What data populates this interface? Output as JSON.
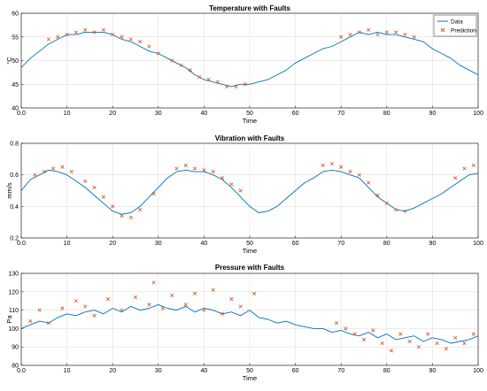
{
  "colors": {
    "data": "#0072BD",
    "prediction": "#D95319"
  },
  "legend": {
    "data_label": "Data",
    "prediction_label": "Prediction",
    "placement": "top-right"
  },
  "chart_data": [
    {
      "type": "line",
      "title": "Temperature with Faults",
      "xlabel": "Time",
      "ylabel": "°C",
      "xlim": [
        0,
        100
      ],
      "ylim": [
        40,
        60
      ],
      "xticks": [
        0,
        10,
        20,
        30,
        40,
        50,
        60,
        70,
        80,
        90,
        100
      ],
      "yticks": [
        40,
        45,
        50,
        55,
        60
      ],
      "grid": true,
      "legend": true,
      "series": [
        {
          "name": "Data",
          "x": [
            0,
            2,
            4,
            6,
            8,
            10,
            12,
            14,
            16,
            18,
            20,
            22,
            24,
            26,
            28,
            30,
            32,
            34,
            36,
            38,
            40,
            42,
            44,
            46,
            48,
            50,
            52,
            54,
            56,
            58,
            60,
            62,
            64,
            66,
            68,
            70,
            72,
            74,
            76,
            78,
            80,
            82,
            84,
            86,
            88,
            90,
            92,
            94,
            96,
            98,
            100
          ],
          "values": [
            48.5,
            50.5,
            52,
            53.5,
            54.5,
            55.5,
            55.5,
            56,
            56,
            56,
            55.5,
            54.5,
            54,
            53,
            52,
            51.5,
            50.5,
            49.5,
            48.5,
            47,
            46,
            45.5,
            45,
            44.5,
            45,
            45,
            45.5,
            46,
            47,
            48,
            49.5,
            50.5,
            51.5,
            52.5,
            53,
            54,
            55,
            56,
            55.5,
            56,
            55.5,
            55.5,
            55,
            54.5,
            54,
            52.5,
            51.5,
            50.5,
            49,
            48,
            47
          ]
        },
        {
          "name": "Prediction",
          "x": [
            6,
            8,
            10,
            12,
            14,
            16,
            18,
            20,
            22,
            24,
            26,
            28,
            30,
            33,
            35,
            37,
            39,
            41,
            43,
            45,
            47,
            49,
            70,
            72,
            74,
            76,
            78,
            80,
            82,
            84,
            86
          ],
          "values": [
            54.5,
            55,
            55.5,
            56,
            56.5,
            56,
            56.5,
            55.5,
            55,
            54.5,
            54,
            53,
            51.5,
            50,
            49,
            48,
            46.5,
            46,
            45.5,
            44.5,
            44.5,
            45,
            55,
            55.5,
            56,
            56.5,
            55.5,
            56,
            56,
            55.5,
            55
          ]
        }
      ]
    },
    {
      "type": "line",
      "title": "Vibration with Faults",
      "xlabel": "Time",
      "ylabel": "mm/s",
      "xlim": [
        0,
        100
      ],
      "ylim": [
        0.2,
        0.8
      ],
      "xticks": [
        0,
        10,
        20,
        30,
        40,
        50,
        60,
        70,
        80,
        90,
        100
      ],
      "yticks": [
        0.2,
        0.4,
        0.6,
        0.8
      ],
      "grid": true,
      "legend": false,
      "series": [
        {
          "name": "Data",
          "x": [
            0,
            2,
            4,
            6,
            8,
            10,
            12,
            14,
            16,
            18,
            20,
            22,
            24,
            26,
            28,
            30,
            32,
            34,
            36,
            38,
            40,
            42,
            44,
            46,
            48,
            50,
            52,
            54,
            56,
            58,
            60,
            62,
            64,
            66,
            68,
            70,
            72,
            74,
            76,
            78,
            80,
            82,
            84,
            86,
            88,
            90,
            92,
            94,
            96,
            98,
            100
          ],
          "values": [
            0.5,
            0.57,
            0.6,
            0.63,
            0.62,
            0.6,
            0.56,
            0.52,
            0.47,
            0.42,
            0.37,
            0.35,
            0.36,
            0.4,
            0.46,
            0.52,
            0.58,
            0.62,
            0.63,
            0.62,
            0.62,
            0.6,
            0.57,
            0.52,
            0.46,
            0.4,
            0.36,
            0.37,
            0.4,
            0.45,
            0.5,
            0.55,
            0.58,
            0.62,
            0.63,
            0.62,
            0.6,
            0.58,
            0.52,
            0.46,
            0.42,
            0.38,
            0.37,
            0.39,
            0.42,
            0.45,
            0.48,
            0.52,
            0.56,
            0.6,
            0.61
          ]
        },
        {
          "name": "Prediction",
          "x": [
            3,
            5,
            7,
            9,
            11,
            14,
            16,
            18,
            20,
            22,
            24,
            26,
            29,
            34,
            36,
            38,
            40,
            42,
            44,
            46,
            48,
            66,
            68,
            70,
            72,
            74,
            76,
            78,
            80,
            82,
            84,
            95,
            97,
            99
          ],
          "values": [
            0.6,
            0.62,
            0.64,
            0.65,
            0.62,
            0.56,
            0.52,
            0.46,
            0.4,
            0.34,
            0.33,
            0.38,
            0.48,
            0.64,
            0.66,
            0.64,
            0.63,
            0.62,
            0.58,
            0.54,
            0.5,
            0.66,
            0.67,
            0.65,
            0.62,
            0.6,
            0.55,
            0.47,
            0.42,
            0.38,
            0.37,
            0.58,
            0.64,
            0.66
          ]
        }
      ]
    },
    {
      "type": "line",
      "title": "Pressure with Faults",
      "xlabel": "Time",
      "ylabel": "Pa",
      "xlim": [
        0,
        100
      ],
      "ylim": [
        80,
        130
      ],
      "xticks": [
        0,
        10,
        20,
        30,
        40,
        50,
        60,
        70,
        80,
        90,
        100
      ],
      "yticks": [
        80,
        90,
        100,
        110,
        120,
        130
      ],
      "grid": true,
      "legend": false,
      "series": [
        {
          "name": "Data",
          "x": [
            0,
            2,
            4,
            6,
            8,
            10,
            12,
            14,
            16,
            18,
            20,
            22,
            24,
            26,
            28,
            30,
            32,
            34,
            36,
            38,
            40,
            42,
            44,
            46,
            48,
            50,
            52,
            54,
            56,
            58,
            60,
            62,
            64,
            66,
            68,
            70,
            72,
            74,
            76,
            78,
            80,
            82,
            84,
            86,
            88,
            90,
            92,
            94,
            96,
            98,
            100
          ],
          "values": [
            100,
            102,
            104,
            103,
            106,
            108,
            107,
            109,
            110,
            108,
            111,
            109,
            112,
            110,
            111,
            113,
            111,
            110,
            112,
            109,
            111,
            110,
            108,
            109,
            107,
            110,
            106,
            105,
            103,
            104,
            102,
            101,
            100,
            100,
            98,
            99,
            97,
            96,
            98,
            95,
            97,
            94,
            95,
            96,
            93,
            95,
            94,
            92,
            93,
            94,
            96
          ]
        },
        {
          "name": "Prediction",
          "x": [
            2,
            4,
            6,
            9,
            12,
            14,
            16,
            19,
            22,
            25,
            28,
            29,
            31,
            33,
            36,
            38,
            40,
            42,
            44,
            46,
            48,
            51,
            69,
            71,
            73,
            75,
            77,
            79,
            81,
            83,
            85,
            87,
            89,
            91,
            93,
            95,
            97,
            99
          ],
          "values": [
            104,
            110,
            103,
            111,
            115,
            112,
            107,
            116,
            110,
            117,
            113,
            125,
            111,
            118,
            113,
            119,
            110,
            121,
            108,
            116,
            112,
            119,
            103,
            100,
            97,
            94,
            99,
            92,
            88,
            97,
            93,
            90,
            97,
            92,
            89,
            95,
            92,
            97
          ]
        }
      ]
    }
  ]
}
